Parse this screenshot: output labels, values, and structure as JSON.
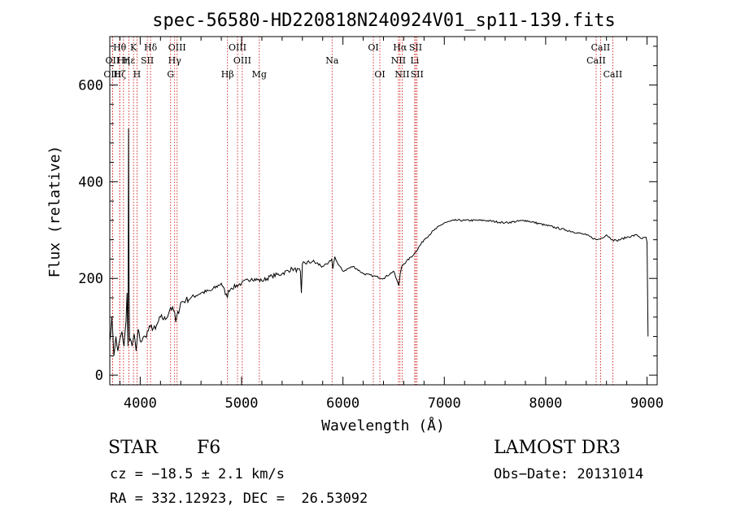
{
  "chart_data": {
    "type": "line",
    "title": "spec-56580-HD220818N240924V01_sp11-139.fits",
    "xlabel": "Wavelength (Å)",
    "ylabel": "Flux (relative)",
    "xlim": [
      3700,
      9100
    ],
    "ylim": [
      -20,
      700
    ],
    "xticks": [
      4000,
      5000,
      6000,
      7000,
      8000,
      9000
    ],
    "yticks": [
      0,
      200,
      400,
      600
    ],
    "grid": false,
    "series": [
      {
        "name": "flux",
        "x": [
          3700,
          3720,
          3740,
          3760,
          3780,
          3800,
          3820,
          3840,
          3860,
          3870,
          3880,
          3885,
          3890,
          3895,
          3900,
          3920,
          3940,
          3960,
          3980,
          4000,
          4050,
          4100,
          4150,
          4200,
          4250,
          4300,
          4340,
          4350,
          4400,
          4450,
          4500,
          4600,
          4700,
          4800,
          4860,
          4870,
          4900,
          5000,
          5100,
          5200,
          5300,
          5400,
          5500,
          5580,
          5590,
          5600,
          5700,
          5800,
          5850,
          5890,
          5900,
          5920,
          5950,
          6000,
          6100,
          6200,
          6300,
          6400,
          6500,
          6550,
          6560,
          6565,
          6580,
          6600,
          6700,
          6800,
          6900,
          7000,
          7100,
          7200,
          7400,
          7600,
          7800,
          8000,
          8200,
          8400,
          8500,
          8540,
          8600,
          8660,
          8700,
          8800,
          8900,
          8950,
          8990,
          9000,
          9010
        ],
        "y": [
          70,
          120,
          40,
          80,
          50,
          75,
          90,
          60,
          110,
          170,
          60,
          510,
          190,
          70,
          75,
          60,
          85,
          50,
          95,
          70,
          80,
          100,
          95,
          120,
          115,
          140,
          130,
          110,
          150,
          155,
          160,
          170,
          175,
          190,
          160,
          175,
          180,
          190,
          200,
          195,
          205,
          210,
          220,
          215,
          170,
          230,
          235,
          225,
          230,
          240,
          220,
          245,
          230,
          215,
          225,
          210,
          205,
          200,
          215,
          185,
          200,
          210,
          225,
          230,
          250,
          280,
          300,
          315,
          320,
          320,
          320,
          315,
          320,
          310,
          300,
          290,
          280,
          282,
          290,
          280,
          278,
          285,
          290,
          282,
          285,
          275,
          80
        ]
      }
    ],
    "line_markers": [
      {
        "label": "Hθ",
        "x": 3798,
        "row": 1
      },
      {
        "label": "K",
        "x": 3934,
        "row": 1
      },
      {
        "label": "Hδ",
        "x": 4102,
        "row": 1
      },
      {
        "label": "OIII",
        "x": 4364,
        "row": 1
      },
      {
        "label": "OIII",
        "x": 4960,
        "row": 1
      },
      {
        "label": "OI",
        "x": 6300,
        "row": 1
      },
      {
        "label": "Hα",
        "x": 6563,
        "row": 1
      },
      {
        "label": "SII",
        "x": 6717,
        "row": 1
      },
      {
        "label": "CaII",
        "x": 8542,
        "row": 1
      },
      {
        "label": "OII",
        "x": 3727,
        "row": 2
      },
      {
        "label": "Hη",
        "x": 3835,
        "row": 2
      },
      {
        "label": "Hε",
        "x": 3889,
        "row": 2
      },
      {
        "label": "SII",
        "x": 4070,
        "row": 2
      },
      {
        "label": "Hγ",
        "x": 4340,
        "row": 2
      },
      {
        "label": "OIII",
        "x": 5007,
        "row": 2
      },
      {
        "label": "Na",
        "x": 5893,
        "row": 2
      },
      {
        "label": "NII",
        "x": 6548,
        "row": 2
      },
      {
        "label": "Li",
        "x": 6708,
        "row": 2
      },
      {
        "label": "CaII",
        "x": 8498,
        "row": 2
      },
      {
        "label": "OIII",
        "x": 3727,
        "row": 3
      },
      {
        "label": "Hζ",
        "x": 3798,
        "row": 3
      },
      {
        "label": "H",
        "x": 3968,
        "row": 3
      },
      {
        "label": "G",
        "x": 4300,
        "row": 3
      },
      {
        "label": "Hβ",
        "x": 4861,
        "row": 3
      },
      {
        "label": "Mg",
        "x": 5175,
        "row": 3
      },
      {
        "label": "OI",
        "x": 6364,
        "row": 3
      },
      {
        "label": "NII",
        "x": 6584,
        "row": 3
      },
      {
        "label": "SII",
        "x": 6731,
        "row": 3
      },
      {
        "label": "CaII",
        "x": 8662,
        "row": 3
      }
    ]
  },
  "info": {
    "object_class": "STAR",
    "subclass": "F6",
    "survey": "LAMOST DR3",
    "cz": "cz = −18.5 ± 2.1 km/s",
    "obs_date": "Obs−Date: 20131014",
    "coords": "RA = 332.12923, DEC =  26.53092"
  },
  "colors": {
    "marker_line": "#cc0000",
    "spectrum": "#000000"
  }
}
